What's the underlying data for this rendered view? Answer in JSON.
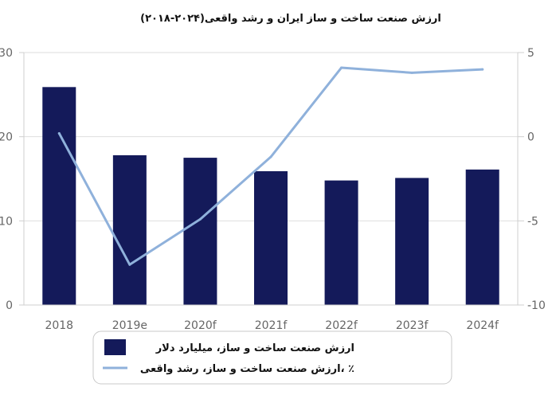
{
  "chart_data": {
    "type": "bar",
    "title": "ارزش صنعت ساخت و ساز ایران و رشد واقعی(۲۰۲۴-۲۰۱۸)",
    "categories": [
      "2018",
      "2019e",
      "2020f",
      "2021f",
      "2022f",
      "2023f",
      "2024f"
    ],
    "series": [
      {
        "name": "ارزش صنعت ساخت و ساز، میلیارد دلار",
        "kind": "bar",
        "axis": "left",
        "color": "#141a5a",
        "values": [
          25.9,
          17.8,
          17.5,
          15.9,
          14.8,
          15.1,
          16.1
        ]
      },
      {
        "name": "ارزش صنعت ساخت و ساز، رشد واقعی، ٪",
        "kind": "line",
        "axis": "right",
        "color": "#8fb1db",
        "values": [
          0.2,
          -7.6,
          -4.9,
          -1.2,
          4.1,
          3.8,
          4.0
        ]
      }
    ],
    "y_left": {
      "range": [
        0,
        30
      ],
      "ticks": [
        "0",
        "10",
        "20",
        "30"
      ]
    },
    "y_right": {
      "range": [
        -10,
        5
      ],
      "ticks": [
        "-10",
        "-5",
        "0",
        "5"
      ]
    },
    "grid": "horizontal",
    "legend": "bottom"
  }
}
